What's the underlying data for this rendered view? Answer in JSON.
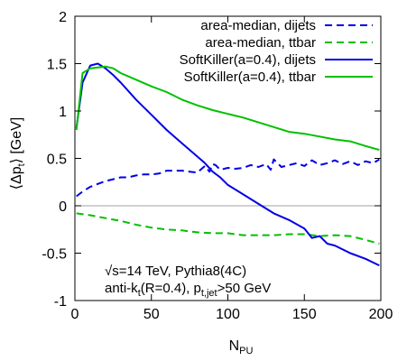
{
  "chart_data": {
    "type": "line",
    "xlabel": "N",
    "xlabel_sub": "PU",
    "ylabel": "⟨Δp",
    "ylabel_sub": "t",
    "ylabel_tail": "⟩ [GeV]",
    "xlim": [
      0,
      200
    ],
    "ylim": [
      -1,
      2
    ],
    "x_ticks": [
      0,
      50,
      100,
      150,
      200
    ],
    "y_ticks": [
      -1,
      -0.5,
      0,
      0.5,
      1,
      1.5,
      2
    ],
    "y_tick_labels": [
      "-1",
      "-0.5",
      "0",
      "0.5",
      "1",
      "1.5",
      "2"
    ],
    "zero_line": true,
    "grid": false,
    "legend_position": "top-right",
    "annotations": {
      "line1": "√s=14 TeV, Pythia8(4C)",
      "line2_main": "anti-k",
      "line2_sub_t": "t",
      "line2_mid": "(R=0.4), p",
      "line2_sub_tjet": "t,jet",
      "line2_tail": ">50 GeV"
    },
    "series": [
      {
        "name": "area-median, dijets",
        "color": "#0000e6",
        "dash": "dashed",
        "x": [
          1,
          5,
          10,
          15,
          20,
          25,
          30,
          35,
          40,
          45,
          50,
          55,
          60,
          65,
          70,
          75,
          80,
          85,
          88,
          90,
          92,
          95,
          100,
          105,
          110,
          115,
          120,
          125,
          128,
          130,
          135,
          140,
          145,
          150,
          155,
          160,
          165,
          170,
          175,
          180,
          185,
          190,
          195,
          199
        ],
        "y": [
          0.1,
          0.15,
          0.2,
          0.23,
          0.26,
          0.28,
          0.3,
          0.3,
          0.32,
          0.33,
          0.33,
          0.34,
          0.37,
          0.37,
          0.37,
          0.36,
          0.35,
          0.42,
          0.36,
          0.44,
          0.43,
          0.38,
          0.4,
          0.39,
          0.4,
          0.43,
          0.41,
          0.44,
          0.38,
          0.49,
          0.41,
          0.43,
          0.45,
          0.42,
          0.48,
          0.43,
          0.45,
          0.48,
          0.44,
          0.47,
          0.43,
          0.47,
          0.45,
          0.49
        ]
      },
      {
        "name": "area-median, ttbar",
        "color": "#00c000",
        "dash": "dashed",
        "x": [
          1,
          10,
          20,
          30,
          40,
          50,
          60,
          70,
          80,
          90,
          100,
          110,
          120,
          130,
          140,
          150,
          160,
          170,
          180,
          190,
          199
        ],
        "y": [
          -0.08,
          -0.1,
          -0.13,
          -0.16,
          -0.2,
          -0.23,
          -0.25,
          -0.26,
          -0.28,
          -0.29,
          -0.29,
          -0.31,
          -0.31,
          -0.31,
          -0.3,
          -0.3,
          -0.32,
          -0.31,
          -0.32,
          -0.36,
          -0.4
        ]
      },
      {
        "name": "SoftKiller(a=0.4), dijets",
        "color": "#0000e6",
        "dash": "solid",
        "x": [
          1,
          5,
          10,
          15,
          20,
          25,
          30,
          40,
          50,
          60,
          70,
          80,
          85,
          90,
          95,
          100,
          110,
          120,
          130,
          140,
          150,
          155,
          160,
          165,
          170,
          180,
          190,
          199
        ],
        "y": [
          0.82,
          1.3,
          1.48,
          1.5,
          1.45,
          1.38,
          1.3,
          1.12,
          0.96,
          0.8,
          0.66,
          0.52,
          0.45,
          0.36,
          0.3,
          0.22,
          0.12,
          0.02,
          -0.08,
          -0.15,
          -0.24,
          -0.34,
          -0.32,
          -0.4,
          -0.42,
          -0.5,
          -0.56,
          -0.63
        ]
      },
      {
        "name": "SoftKiller(a=0.4), ttbar",
        "color": "#00c000",
        "dash": "solid",
        "x": [
          1,
          5,
          10,
          15,
          20,
          25,
          30,
          40,
          50,
          60,
          70,
          80,
          90,
          100,
          110,
          120,
          130,
          140,
          150,
          160,
          170,
          180,
          190,
          199
        ],
        "y": [
          0.8,
          1.4,
          1.45,
          1.46,
          1.47,
          1.45,
          1.4,
          1.33,
          1.26,
          1.2,
          1.12,
          1.06,
          1.01,
          0.97,
          0.93,
          0.88,
          0.83,
          0.78,
          0.76,
          0.73,
          0.7,
          0.68,
          0.63,
          0.59
        ]
      }
    ]
  }
}
